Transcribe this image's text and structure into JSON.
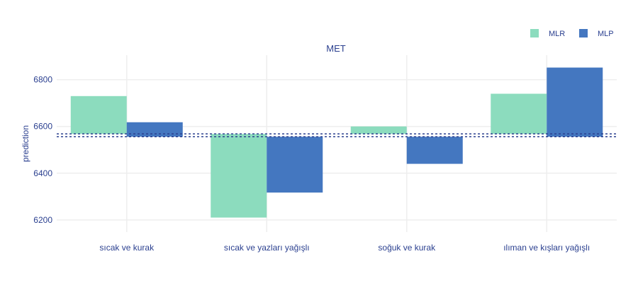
{
  "chart_data": {
    "type": "bar",
    "title": "MET",
    "xlabel": "",
    "ylabel": "prediction",
    "categories": [
      "sıcak ve kurak",
      "sıcak ve yazları yağışlı",
      "soğuk ve kurak",
      "ılıman ve kışları yağışlı"
    ],
    "series": [
      {
        "name": "MLR",
        "color": "#8cdcbe",
        "baseline": 6568,
        "values": [
          6730,
          6210,
          6600,
          6740
        ]
      },
      {
        "name": "MLP",
        "color": "#4477c0",
        "baseline": 6556,
        "values": [
          6618,
          6317,
          6440,
          6852
        ]
      }
    ],
    "yticks": [
      6200,
      6400,
      6600,
      6800
    ],
    "ylim": [
      6148,
      6905
    ],
    "grid": true,
    "legend_position": "top-right",
    "reference_lines": [
      6568,
      6556
    ]
  }
}
